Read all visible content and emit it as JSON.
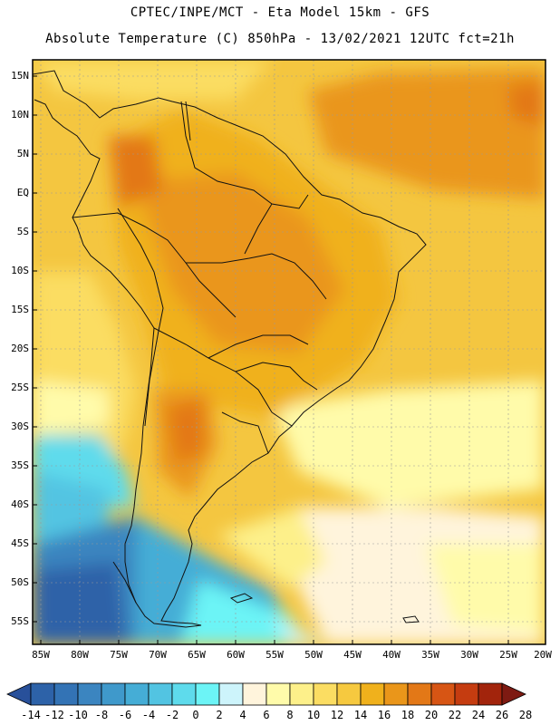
{
  "title_line1": "CPTEC/INPE/MCT -  Eta Model 15km - GFS",
  "title_line2": "Absolute Temperature (C) 850hPa - 13/02/2021 12UTC fct=21h",
  "lat_labels": [
    "15N",
    "10N",
    "5N",
    "EQ",
    "5S",
    "10S",
    "15S",
    "20S",
    "25S",
    "30S",
    "35S",
    "40S",
    "45S",
    "50S",
    "55S"
  ],
  "lon_labels": [
    "85W",
    "80W",
    "75W",
    "70W",
    "65W",
    "60W",
    "55W",
    "50W",
    "45W",
    "40W",
    "35W",
    "30W",
    "25W",
    "20W"
  ],
  "colorbar": {
    "labels": [
      "-14",
      "-12",
      "-10",
      "-8",
      "-6",
      "-4",
      "-2",
      "0",
      "2",
      "4",
      "6",
      "8",
      "10",
      "12",
      "14",
      "16",
      "18",
      "20",
      "22",
      "24",
      "26",
      "28"
    ],
    "colors": [
      "#28509a",
      "#2d62a8",
      "#3373b5",
      "#3b85c0",
      "#3f99cb",
      "#45add6",
      "#52c4e2",
      "#5edbec",
      "#6cf4f6",
      "#cdf4fb",
      "#fff4dc",
      "#fffbaa",
      "#fdf08a",
      "#fbdd62",
      "#f6c93f",
      "#f0b11c",
      "#ea961a",
      "#e37817",
      "#d75514",
      "#c53c10",
      "#a2240c",
      "#7e1a12"
    ]
  }
}
